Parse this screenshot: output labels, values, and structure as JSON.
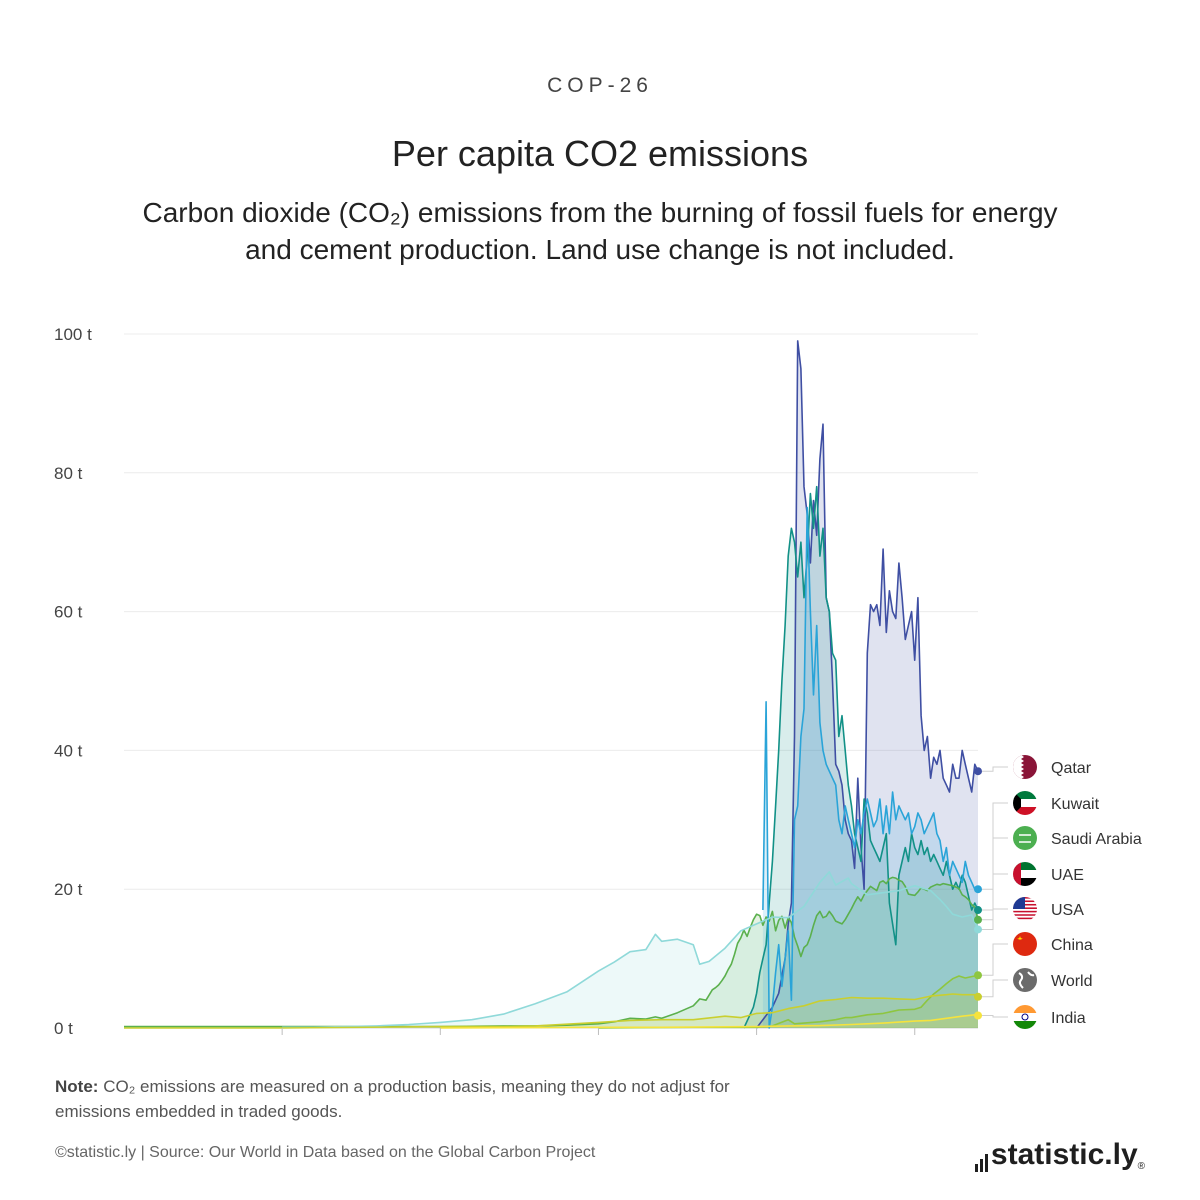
{
  "header": {
    "kicker": "COP-26",
    "title": "Per capita CO2 emissions",
    "subtitle": "Carbon dioxide (CO₂) emissions from the burning of fossil fuels for energy and cement production. Land use change is not included."
  },
  "note": {
    "label": "Note:",
    "text": "CO₂ emissions are measured on a production basis, meaning they do not adjust for emissions embedded in traded goods."
  },
  "footer": {
    "credit": "©statistic.ly | Source: Our World in Data based on the Global Carbon Project"
  },
  "brand": {
    "name": "statistic.ly",
    "mark": "®"
  },
  "chart_data": {
    "type": "area",
    "x_range": [
      1750,
      2020
    ],
    "y_range": [
      0,
      100
    ],
    "y_ticks": [
      0,
      20,
      40,
      60,
      80,
      100
    ],
    "y_tick_labels": [
      "0 t",
      "20 t",
      "40 t",
      "60 t",
      "80 t",
      "100 t"
    ],
    "grid": true,
    "legend_placement": "right",
    "series": [
      {
        "name": "Qatar",
        "color": "#3f4fa3",
        "flag": "qatar",
        "x": [
          1950,
          1955,
          1957,
          1959,
          1960,
          1961,
          1962,
          1963,
          1964,
          1965,
          1966,
          1967,
          1968,
          1969,
          1970,
          1971,
          1972,
          1973,
          1974,
          1975,
          1976,
          1977,
          1978,
          1979,
          1980,
          1981,
          1982,
          1983,
          1984,
          1985,
          1986,
          1987,
          1988,
          1989,
          1990,
          1991,
          1992,
          1993,
          1994,
          1995,
          1996,
          1997,
          1998,
          1999,
          2000,
          2001,
          2002,
          2003,
          2004,
          2005,
          2006,
          2007,
          2008,
          2009,
          2010,
          2011,
          2012,
          2013,
          2014,
          2015,
          2016,
          2017,
          2018,
          2019,
          2020
        ],
        "y": [
          0,
          3,
          5,
          10,
          15,
          18,
          42,
          99,
          95,
          78,
          74,
          67,
          76,
          71,
          82,
          87,
          62,
          60,
          50,
          38,
          37,
          35,
          30,
          28,
          27,
          23,
          36,
          26,
          20,
          54,
          61,
          60,
          61,
          58,
          69,
          57,
          63,
          60,
          59,
          67,
          62,
          56,
          58,
          60,
          53,
          62,
          45,
          40,
          42,
          36,
          39,
          38,
          40,
          36,
          35,
          34,
          38,
          36,
          36,
          40,
          38,
          36,
          34,
          38,
          37
        ]
      },
      {
        "name": "Kuwait",
        "color": "#129187",
        "flag": "kuwait",
        "x": [
          1946,
          1947,
          1948,
          1949,
          1950,
          1951,
          1952,
          1953,
          1954,
          1955,
          1956,
          1957,
          1958,
          1959,
          1960,
          1961,
          1962,
          1963,
          1964,
          1965,
          1966,
          1967,
          1968,
          1969,
          1970,
          1971,
          1972,
          1973,
          1974,
          1975,
          1976,
          1977,
          1978,
          1979,
          1980,
          1981,
          1982,
          1983,
          1984,
          1985,
          1986,
          1987,
          1988,
          1989,
          1990,
          1991,
          1992,
          1993,
          1994,
          1995,
          1996,
          1997,
          1998,
          1999,
          2000,
          2001,
          2002,
          2003,
          2004,
          2005,
          2006,
          2007,
          2008,
          2009,
          2010,
          2011,
          2012,
          2013,
          2014,
          2015,
          2016,
          2017,
          2018,
          2019,
          2020
        ],
        "y": [
          0,
          1,
          2,
          3,
          5,
          8,
          10,
          12,
          18,
          24,
          32,
          40,
          50,
          58,
          68,
          72,
          70,
          65,
          70,
          62,
          68,
          77,
          72,
          78,
          68,
          72,
          62,
          60,
          54,
          53,
          42,
          45,
          40,
          35,
          32,
          28,
          26,
          24,
          33,
          31,
          27,
          26,
          25,
          24,
          26,
          28,
          18,
          15,
          12,
          22,
          24,
          26,
          24,
          28,
          26,
          25,
          27,
          25,
          26,
          24,
          25,
          24,
          23,
          22,
          24,
          22,
          20,
          21,
          20,
          22,
          21,
          19,
          17,
          18,
          17
        ]
      },
      {
        "name": "Saudi Arabia",
        "color": "#5bb04d",
        "flag": "saudi",
        "x": [
          1750,
          1800,
          1850,
          1870,
          1880,
          1890,
          1900,
          1905,
          1910,
          1915,
          1918,
          1920,
          1925,
          1930,
          1932,
          1934,
          1936,
          1937,
          1938,
          1939,
          1940,
          1941,
          1942,
          1943,
          1944,
          1945,
          1946,
          1947,
          1948,
          1949,
          1950,
          1951,
          1952,
          1953,
          1954,
          1955,
          1956,
          1957,
          1958,
          1959,
          1960,
          1961,
          1962,
          1963,
          1964,
          1965,
          1966,
          1967,
          1968,
          1969,
          1970,
          1971,
          1972,
          1973,
          1974,
          1975,
          1976,
          1977,
          1978,
          1979,
          1980,
          1981,
          1982,
          1983,
          1984,
          1985,
          1986,
          1987,
          1988,
          1989,
          1990,
          1991,
          1992,
          1993,
          1994,
          1995,
          1996,
          1997,
          1998,
          1999,
          2000,
          2001,
          2002,
          2003,
          2004,
          2005,
          2006,
          2007,
          2008,
          2009,
          2010,
          2011,
          2012,
          2013,
          2014,
          2015,
          2016,
          2017,
          2018,
          2019,
          2020
        ],
        "y": [
          0.2,
          0.2,
          0.2,
          0.3,
          0.3,
          0.4,
          0.6,
          0.9,
          1.4,
          1.3,
          1.6,
          1.4,
          2.2,
          3.2,
          4.2,
          4.0,
          5.5,
          5.8,
          6.2,
          6.8,
          7.5,
          8.4,
          9.2,
          10.6,
          12.2,
          13.0,
          14.1,
          13.2,
          14.5,
          15.6,
          16.4,
          16.2,
          14.8,
          16.0,
          15.4,
          16.8,
          14.0,
          15.5,
          16.1,
          14.4,
          15.9,
          15.2,
          13.1,
          11.8,
          10.3,
          11.6,
          12.0,
          13.2,
          14.8,
          16.2,
          16.8,
          15.9,
          16.1,
          16.8,
          16.2,
          15.4,
          15.2,
          15.0,
          15.6,
          16.4,
          17.2,
          18.1,
          18.9,
          18.3,
          19.2,
          19.8,
          20.4,
          20.1,
          19.8,
          21.0,
          21.2,
          20.8,
          21.5,
          21.7,
          21.6,
          21.3,
          21.1,
          20.4,
          19.3,
          19.2,
          19.1,
          19.6,
          20.2,
          20.0,
          19.8,
          20.3,
          20.5,
          20.7,
          20.6,
          20.8,
          20.7,
          20.6,
          20.5,
          20.3,
          20.1,
          19.2,
          18.9,
          18.5,
          17.8,
          17.4,
          15.6
        ]
      },
      {
        "name": "UAE",
        "color": "#2aa4d8",
        "flag": "uae",
        "x": [
          1952,
          1953,
          1954,
          1955,
          1956,
          1957,
          1958,
          1959,
          1960,
          1961,
          1962,
          1963,
          1964,
          1965,
          1966,
          1967,
          1968,
          1969,
          1970,
          1971,
          1972,
          1973,
          1974,
          1975,
          1976,
          1977,
          1978,
          1979,
          1980,
          1981,
          1982,
          1983,
          1984,
          1985,
          1986,
          1987,
          1988,
          1989,
          1990,
          1991,
          1992,
          1993,
          1994,
          1995,
          1996,
          1997,
          1998,
          1999,
          2000,
          2001,
          2002,
          2003,
          2004,
          2005,
          2006,
          2007,
          2008,
          2009,
          2010,
          2011,
          2012,
          2013,
          2014,
          2015,
          2016,
          2017,
          2018,
          2019,
          2020
        ],
        "y": [
          17,
          47,
          0,
          3,
          8,
          12,
          6,
          10,
          14,
          4,
          30,
          32,
          42,
          46,
          75,
          60,
          48,
          58,
          44,
          40,
          38,
          37,
          36,
          35,
          30,
          28,
          32,
          30,
          28,
          26,
          30,
          28,
          31,
          33,
          31,
          29,
          30,
          33,
          28,
          32,
          28,
          34,
          30,
          32,
          31,
          30,
          31,
          28,
          29,
          31,
          30,
          28,
          29,
          30,
          31,
          28,
          27,
          24,
          26,
          22,
          24,
          23,
          22,
          21,
          24,
          22,
          21,
          20,
          20
        ]
      },
      {
        "name": "USA",
        "color": "#8fd9d9",
        "flag": "usa",
        "x": [
          1800,
          1810,
          1820,
          1830,
          1840,
          1850,
          1860,
          1870,
          1880,
          1890,
          1900,
          1905,
          1910,
          1915,
          1918,
          1920,
          1925,
          1930,
          1932,
          1935,
          1940,
          1945,
          1950,
          1955,
          1960,
          1965,
          1970,
          1973,
          1975,
          1979,
          1980,
          1985,
          1990,
          1995,
          2000,
          2005,
          2008,
          2010,
          2012,
          2015,
          2018,
          2020
        ],
        "y": [
          0.1,
          0.1,
          0.2,
          0.3,
          0.5,
          0.8,
          1.2,
          2.0,
          3.5,
          5.2,
          8.2,
          9.5,
          11.0,
          11.3,
          13.5,
          12.5,
          12.8,
          12.0,
          9.2,
          9.6,
          11.5,
          14.0,
          15.0,
          16.0,
          15.9,
          17.5,
          21.0,
          22.5,
          20.6,
          21.6,
          20.8,
          19.2,
          19.5,
          19.8,
          20.5,
          19.8,
          18.5,
          17.5,
          16.4,
          16.0,
          16.3,
          14.2
        ]
      },
      {
        "name": "China",
        "color": "#8ec63f",
        "flag": "china",
        "x": [
          1900,
          1930,
          1950,
          1955,
          1960,
          1962,
          1965,
          1970,
          1975,
          1978,
          1980,
          1985,
          1990,
          1995,
          2000,
          2002,
          2004,
          2006,
          2008,
          2010,
          2012,
          2014,
          2016,
          2018,
          2020
        ],
        "y": [
          0.0,
          0.1,
          0.1,
          0.3,
          1.2,
          0.6,
          0.7,
          0.9,
          1.2,
          1.5,
          1.5,
          1.9,
          2.1,
          2.6,
          2.7,
          3.0,
          4.0,
          4.9,
          5.6,
          6.4,
          7.1,
          7.5,
          7.2,
          7.4,
          7.6
        ]
      },
      {
        "name": "World",
        "color": "#c9cf2f",
        "flag": "world",
        "x": [
          1750,
          1800,
          1850,
          1870,
          1880,
          1900,
          1910,
          1920,
          1930,
          1940,
          1945,
          1950,
          1955,
          1960,
          1965,
          1970,
          1975,
          1980,
          1985,
          1990,
          1995,
          2000,
          2005,
          2010,
          2012,
          2015,
          2019,
          2020
        ],
        "y": [
          0.0,
          0.0,
          0.2,
          0.2,
          0.3,
          0.8,
          1.1,
          1.2,
          1.2,
          1.7,
          1.5,
          2.1,
          2.2,
          2.8,
          3.2,
          3.9,
          4.1,
          4.4,
          4.3,
          4.3,
          4.2,
          4.1,
          4.6,
          4.8,
          4.9,
          4.8,
          4.8,
          4.5
        ]
      },
      {
        "name": "India",
        "color": "#f5e33d",
        "flag": "india",
        "x": [
          1850,
          1900,
          1920,
          1950,
          1960,
          1970,
          1980,
          1990,
          2000,
          2005,
          2010,
          2015,
          2019,
          2020
        ],
        "y": [
          0.0,
          0.1,
          0.1,
          0.2,
          0.3,
          0.35,
          0.5,
          0.7,
          1.0,
          1.1,
          1.4,
          1.7,
          1.9,
          1.8
        ]
      }
    ]
  }
}
